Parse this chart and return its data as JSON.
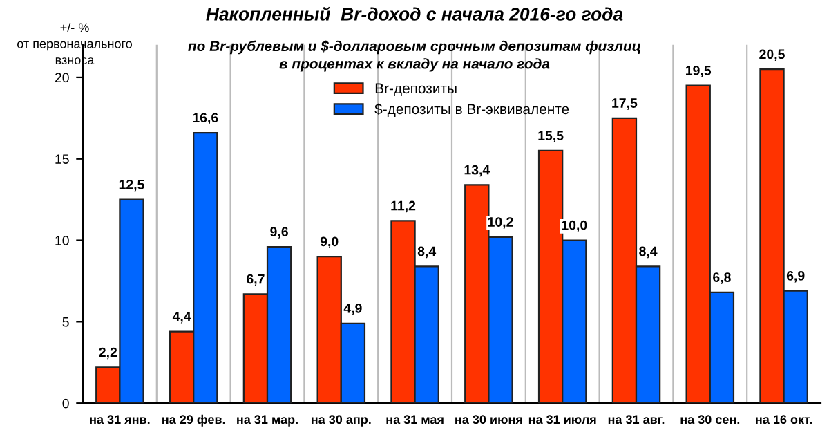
{
  "chart_data": {
    "type": "bar",
    "title": "Накопленный  Br-доход с начала 2016-го года",
    "subtitle": "по Br-рублевым и $-долларовым срочным депозитам физлиц\nв процентах к вкладу на начало года",
    "ylabel": "+/- %\nот первоначального\nвзноса",
    "categories": [
      "на 31 янв.",
      "на 29 фев.",
      "на 31 мар.",
      "на 30 апр.",
      "на 31 мая",
      "на 30 июня",
      "на 31 июля",
      "на 31 авг.",
      "на 30 сен.",
      "на 16 окт."
    ],
    "series": [
      {
        "name": "Br-депозиты",
        "color": "#ff3300",
        "values": [
          2.2,
          4.4,
          6.7,
          9.0,
          11.2,
          13.4,
          15.5,
          17.5,
          19.5,
          20.5
        ],
        "value_labels": [
          "2,2",
          "4,4",
          "6,7",
          "9,0",
          "11,2",
          "13,4",
          "15,5",
          "17,5",
          "19,5",
          "20,5"
        ]
      },
      {
        "name": "$-депозиты в Br-эквиваленте",
        "color": "#0066ff",
        "values": [
          12.5,
          16.6,
          9.6,
          4.9,
          8.4,
          10.2,
          10.0,
          8.4,
          6.8,
          6.9
        ],
        "value_labels": [
          "12,5",
          "16,6",
          "9,6",
          "4,9",
          "8,4",
          "10,2",
          "10,0",
          "8,4",
          "6,8",
          "6,9"
        ]
      }
    ],
    "ylim": [
      0,
      22
    ],
    "yticks": [
      0,
      5,
      10,
      15,
      20
    ],
    "grid": "x",
    "legend": "top"
  }
}
